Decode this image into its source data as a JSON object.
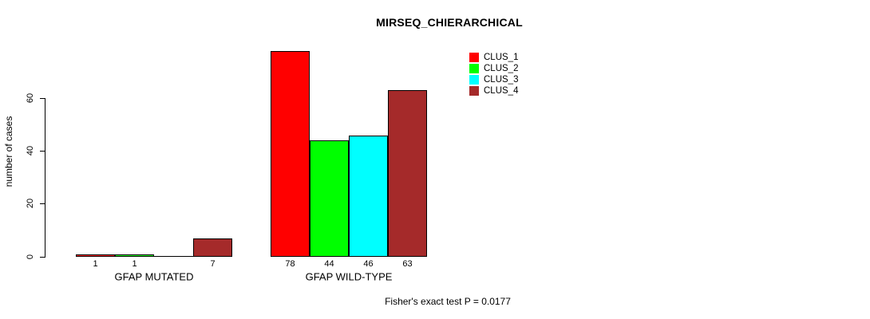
{
  "chart_data": {
    "type": "bar",
    "title": "MIRSEQ_CHIERARCHICAL",
    "ylabel": "number of cases",
    "xlabel": "",
    "annotation": "Fisher's exact test P = 0.0177",
    "yticks": [
      0,
      20,
      40,
      60
    ],
    "ylim": [
      0,
      78
    ],
    "grid": false,
    "legend_position": "top-right",
    "categories": [
      "GFAP MUTATED",
      "GFAP WILD-TYPE"
    ],
    "series": [
      {
        "name": "CLUS_1",
        "color": "#FF0000",
        "values": [
          1,
          78
        ]
      },
      {
        "name": "CLUS_2",
        "color": "#00FF00",
        "values": [
          1,
          44
        ]
      },
      {
        "name": "CLUS_3",
        "color": "#00FFFF",
        "values": [
          0,
          46
        ]
      },
      {
        "name": "CLUS_4",
        "color": "#A52A2A",
        "values": [
          7,
          63
        ]
      }
    ],
    "bar_value_labels": [
      [
        "1",
        "1",
        "",
        "7"
      ],
      [
        "78",
        "44",
        "46",
        "63"
      ]
    ]
  }
}
